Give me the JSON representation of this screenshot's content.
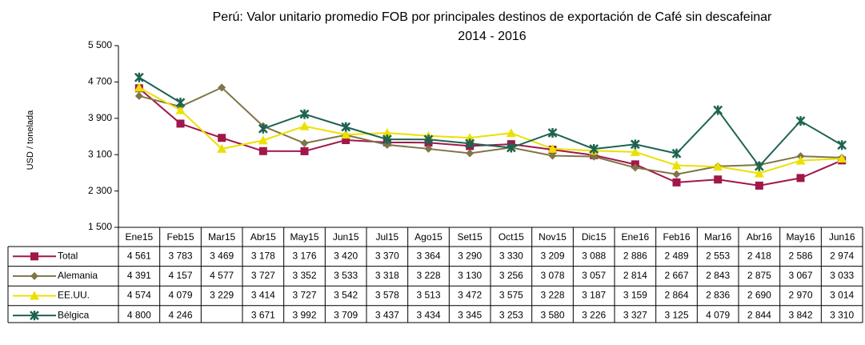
{
  "chart_data": {
    "type": "line",
    "title": "Perú: Valor unitario promedio FOB por principales destinos de exportación de Café sin descafeinar",
    "subtitle": "2014 - 2016",
    "y_label": "USD / tonelada",
    "categories": [
      "Ene15",
      "Feb15",
      "Mar15",
      "Abr15",
      "May15",
      "Jun15",
      "Jul15",
      "Ago15",
      "Set15",
      "Oct15",
      "Nov15",
      "Dic15",
      "Ene16",
      "Feb16",
      "Mar16",
      "Abr16",
      "May16",
      "Jun16"
    ],
    "series": [
      {
        "name": "Total",
        "color": "#a0174a",
        "marker": "square",
        "values": [
          4561,
          3783,
          3469,
          3178,
          3176,
          3420,
          3370,
          3364,
          3290,
          3330,
          3209,
          3088,
          2886,
          2489,
          2553,
          2418,
          2586,
          2974
        ],
        "value_labels": [
          "4 561",
          "3 783",
          "3 469",
          "3 178",
          "3 176",
          "3 420",
          "3 370",
          "3 364",
          "3 290",
          "3 330",
          "3 209",
          "3 088",
          "2 886",
          "2 489",
          "2 553",
          "2 418",
          "2 586",
          "2 974"
        ]
      },
      {
        "name": "Alemania",
        "color": "#7f7547",
        "marker": "diamond",
        "values": [
          4391,
          4157,
          4577,
          3727,
          3352,
          3533,
          3318,
          3228,
          3130,
          3256,
          3078,
          3057,
          2814,
          2667,
          2843,
          2875,
          3067,
          3033
        ],
        "value_labels": [
          "4 391",
          "4 157",
          "4 577",
          "3 727",
          "3 352",
          "3 533",
          "3 318",
          "3 228",
          "3 130",
          "3 256",
          "3 078",
          "3 057",
          "2 814",
          "2 667",
          "2 843",
          "2 875",
          "3 067",
          "3 033"
        ]
      },
      {
        "name": "EE.UU.",
        "color": "#ece000",
        "marker": "triangle",
        "values": [
          4574,
          4079,
          3229,
          3414,
          3727,
          3542,
          3578,
          3513,
          3472,
          3575,
          3228,
          3187,
          3159,
          2864,
          2836,
          2690,
          2970,
          3014
        ],
        "value_labels": [
          "4 574",
          "4 079",
          "3 229",
          "3 414",
          "3 727",
          "3 542",
          "3 578",
          "3 513",
          "3 472",
          "3 575",
          "3 228",
          "3 187",
          "3 159",
          "2 864",
          "2 836",
          "2 690",
          "2 970",
          "3 014"
        ]
      },
      {
        "name": "Bélgica",
        "color": "#1e6352",
        "marker": "star",
        "values": [
          4800,
          4246,
          null,
          3671,
          3992,
          3709,
          3437,
          3434,
          3345,
          3253,
          3580,
          3226,
          3327,
          3125,
          4079,
          2844,
          3842,
          3310
        ],
        "value_labels": [
          "4 800",
          "4 246",
          null,
          "3 671",
          "3 992",
          "3 709",
          "3 437",
          "3 434",
          "3 345",
          "3 253",
          "3 580",
          "3 226",
          "3 327",
          "3 125",
          "4 079",
          "2 844",
          "3 842",
          "3 310"
        ]
      }
    ],
    "ylim": [
      1500,
      5500
    ],
    "yticks": [
      {
        "value": 1500,
        "label": "1 500"
      },
      {
        "value": 2300,
        "label": "2 300"
      },
      {
        "value": 3100,
        "label": "3 100"
      },
      {
        "value": 3900,
        "label": "3 900"
      },
      {
        "value": 4700,
        "label": "4 700"
      },
      {
        "value": 5500,
        "label": "5 500"
      }
    ]
  }
}
